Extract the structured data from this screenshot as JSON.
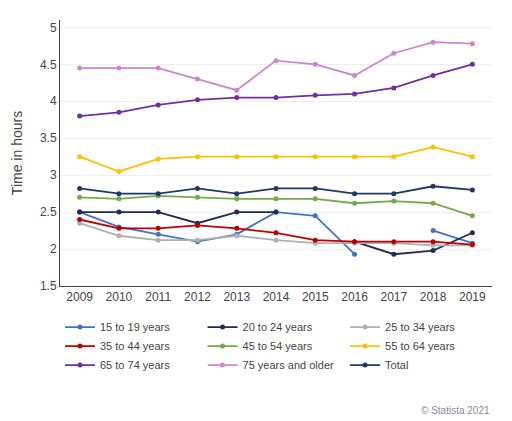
{
  "chart_data": {
    "type": "line",
    "x": [
      2009,
      2010,
      2011,
      2012,
      2013,
      2014,
      2015,
      2016,
      2017,
      2018,
      2019
    ],
    "series": [
      {
        "name": "15 to 19 years",
        "color": "#4472c4",
        "values": [
          2.5,
          2.3,
          2.2,
          2.1,
          2.2,
          2.5,
          2.45,
          1.93,
          null,
          2.25,
          2.08
        ]
      },
      {
        "name": "20 to 24 years",
        "color": "#1f2d54",
        "values": [
          2.5,
          2.5,
          2.5,
          2.35,
          2.5,
          2.5,
          null,
          2.1,
          1.93,
          1.98,
          2.22
        ]
      },
      {
        "name": "25 to 34 years",
        "color": "#b0b0b0",
        "values": [
          2.35,
          2.18,
          2.12,
          2.12,
          2.18,
          2.12,
          2.08,
          2.08,
          2.08,
          2.05,
          2.05
        ]
      },
      {
        "name": "35 to 44 years",
        "color": "#c00000",
        "values": [
          2.4,
          2.28,
          2.28,
          2.32,
          2.28,
          2.22,
          2.12,
          2.1,
          2.1,
          2.1,
          2.06
        ]
      },
      {
        "name": "45 to 54 years",
        "color": "#70ad47",
        "values": [
          2.7,
          2.68,
          2.72,
          2.7,
          2.68,
          2.68,
          2.68,
          2.62,
          2.65,
          2.62,
          2.45
        ]
      },
      {
        "name": "55 to 64 years",
        "color": "#ffc000",
        "values": [
          3.25,
          3.05,
          3.22,
          3.25,
          3.25,
          3.25,
          3.25,
          3.25,
          3.25,
          3.38,
          3.25
        ]
      },
      {
        "name": "65 to 74 years",
        "color": "#7030a0",
        "values": [
          3.8,
          3.85,
          3.95,
          4.02,
          4.05,
          4.05,
          4.08,
          4.1,
          4.18,
          4.35,
          4.5
        ]
      },
      {
        "name": "75 years and older",
        "color": "#cc88cc",
        "values": [
          4.45,
          4.45,
          4.45,
          4.3,
          4.15,
          4.55,
          4.5,
          4.35,
          4.65,
          4.8,
          4.78
        ]
      },
      {
        "name": "Total",
        "color": "#1f3864",
        "values": [
          2.82,
          2.75,
          2.75,
          2.82,
          2.75,
          2.82,
          2.82,
          2.75,
          2.75,
          2.85,
          2.8
        ]
      }
    ],
    "ylabel": "Time in hours",
    "xlim": [
      2008.5,
      2019.5
    ],
    "xticks": [
      2009,
      2010,
      2011,
      2012,
      2013,
      2014,
      2015,
      2016,
      2017,
      2018,
      2019
    ],
    "ylim": [
      1.5,
      5.1
    ],
    "yticks": [
      1.5,
      2,
      2.5,
      3,
      3.5,
      4,
      4.5,
      5
    ],
    "grid": true,
    "legend": "bottom",
    "marker": "circle",
    "annotations": [
      "© Statista 2021"
    ]
  }
}
